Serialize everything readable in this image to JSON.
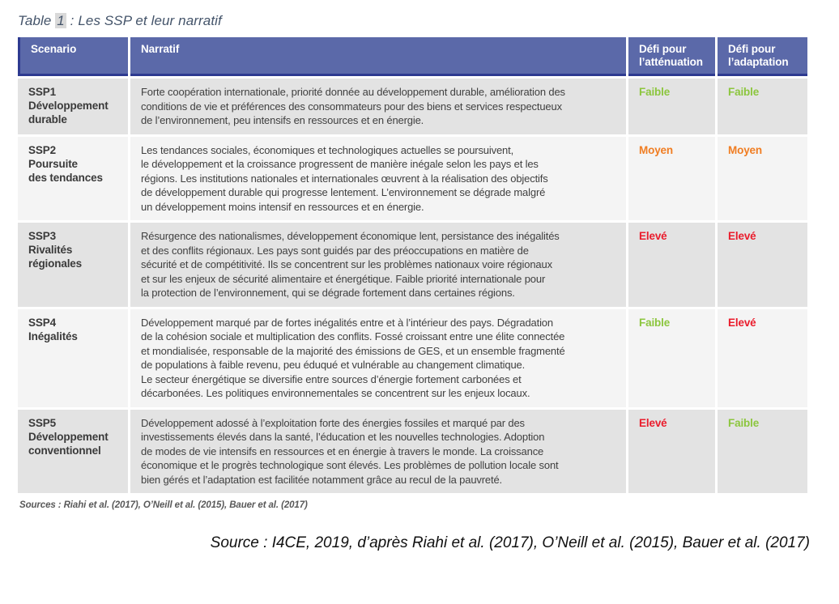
{
  "title": {
    "prefix": "Table ",
    "number": "1",
    "suffix": " : Les SSP et leur narratif"
  },
  "table": {
    "headers": [
      "Scenario",
      "Narratif",
      "Défi pour\nl’atténuation",
      "Défi pour\nl’adaptation"
    ],
    "rows": [
      {
        "scenario": "SSP1\nDéveloppement\ndurable",
        "narratif": "Forte coopération internationale, priorité donnée au développement durable, amélioration des\nconditions de vie et préférences des consommateurs pour des biens et services respectueux\nde l’environnement, peu intensifs en ressources et en énergie.",
        "attenuation": "Faible",
        "attenuation_level": "low",
        "adaptation": "Faible",
        "adaptation_level": "low"
      },
      {
        "scenario": "SSP2\nPoursuite\ndes tendances",
        "narratif": "Les tendances sociales, économiques et technologiques actuelles se poursuivent,\nle développement et la croissance progressent de manière inégale selon les pays et les\nrégions. Les institutions nationales et internationales œuvrent à la réalisation des objectifs\nde développement durable qui progresse lentement. L’environnement se dégrade malgré\nun développement moins intensif en ressources et en énergie.",
        "attenuation": "Moyen",
        "attenuation_level": "medium",
        "adaptation": "Moyen",
        "adaptation_level": "medium"
      },
      {
        "scenario": "SSP3\nRivalités\nrégionales",
        "narratif": "Résurgence des nationalismes, développement économique lent, persistance des inégalités\net des conflits régionaux. Les pays sont guidés par des préoccupations en matière de\nsécurité et de compétitivité. Ils se concentrent sur les problèmes nationaux voire régionaux\net sur les enjeux de sécurité alimentaire et énergétique. Faible priorité internationale pour\nla protection de l’environnement, qui se dégrade fortement dans certaines régions.",
        "attenuation": "Elevé",
        "attenuation_level": "high",
        "adaptation": "Elevé",
        "adaptation_level": "high"
      },
      {
        "scenario": "SSP4\nInégalités",
        "narratif": "Développement marqué par de fortes inégalités entre et à l’intérieur des pays. Dégradation\nde la cohésion sociale et multiplication des conflits. Fossé croissant entre une élite connectée\net mondialisée, responsable de la majorité des émissions de GES, et un ensemble fragmenté\nde populations à faible revenu, peu éduqué et vulnérable au changement climatique.\nLe secteur énergétique se diversifie entre sources d’énergie fortement carbonées et\ndécarbonées. Les politiques environnementales se concentrent sur les enjeux locaux.",
        "attenuation": "Faible",
        "attenuation_level": "low",
        "adaptation": "Elevé",
        "adaptation_level": "high"
      },
      {
        "scenario": "SSP5\nDéveloppement\nconventionnel",
        "narratif": "Développement adossé à l’exploitation forte des énergies fossiles et marqué par des\ninvestissements élevés dans la santé, l’éducation et les nouvelles technologies. Adoption\nde modes de vie intensifs en ressources et en énergie à travers le monde. La croissance\néconomique et le progrès technologique sont élevés. Les problèmes de pollution locale sont\nbien gérés et l’adaptation est facilitée notamment grâce au recul de la pauvreté.",
        "attenuation": "Elevé",
        "attenuation_level": "high",
        "adaptation": "Faible",
        "adaptation_level": "low"
      }
    ]
  },
  "footnote": "Sources : Riahi et al. (2017), O’Neill et al. (2015), Bauer et al. (2017)",
  "caption": "Source : I4CE, 2019, d’après Riahi et al. (2017), O’Neill et al. (2015), Bauer et al. (2017)",
  "colors": {
    "low": "#8cc63e",
    "medium": "#f07d22",
    "high": "#ea1c2c",
    "header_bg": "#5b69a9",
    "header_border": "#2d3a90"
  }
}
